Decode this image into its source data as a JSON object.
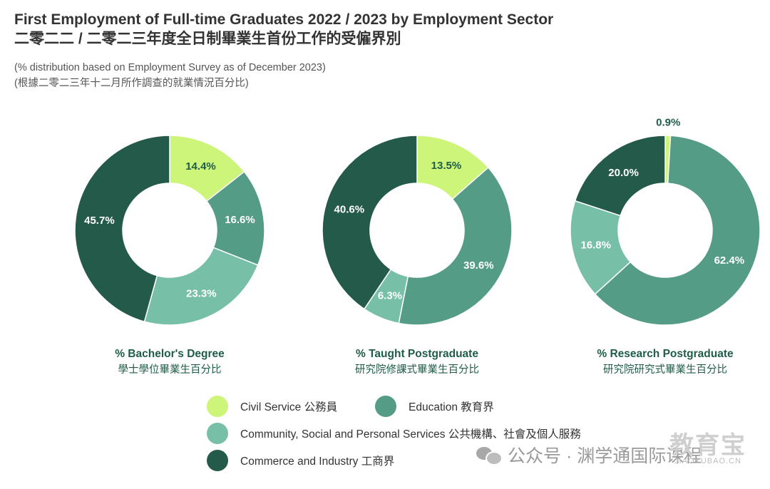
{
  "title_en": "First Employment of Full-time Graduates 2022 / 2023 by Employment Sector",
  "title_zh": "二零二二 / 二零二三年度全日制畢業生首份工作的受僱界別",
  "subtitle_en": "(% distribution based on Employment Survey as of December 2023)",
  "subtitle_zh": "(根據二零二三年十二月所作調查的就業情況百分比)",
  "colors": {
    "civil_service": "#ccf57a",
    "education": "#549c86",
    "community": "#78bfa8",
    "commerce": "#245a4a",
    "label_dark": "#1f5c49",
    "label_light": "#ffffff"
  },
  "legend": [
    {
      "key": "civil_service",
      "label": "Civil Service 公務員"
    },
    {
      "key": "education",
      "label": "Education 教育界"
    },
    {
      "key": "community",
      "label": "Community, Social and Personal Services 公共機構、社會及個人服務"
    },
    {
      "key": "commerce",
      "label": "Commerce and Industry 工商界"
    }
  ],
  "chart_data": [
    {
      "type": "pie",
      "donut": true,
      "title": "% Bachelor's Degree",
      "subtitle": "學士學位畢業生百分比",
      "slices": [
        {
          "key": "civil_service",
          "value": 14.4,
          "label": "14.4%"
        },
        {
          "key": "education",
          "value": 16.6,
          "label": "16.6%"
        },
        {
          "key": "community",
          "value": 23.3,
          "label": "23.3%"
        },
        {
          "key": "commerce",
          "value": 45.7,
          "label": "45.7%"
        }
      ]
    },
    {
      "type": "pie",
      "donut": true,
      "title": "% Taught Postgraduate",
      "subtitle": "研究院修課式畢業生百分比",
      "slices": [
        {
          "key": "civil_service",
          "value": 13.5,
          "label": "13.5%"
        },
        {
          "key": "education",
          "value": 39.6,
          "label": "39.6%"
        },
        {
          "key": "community",
          "value": 6.3,
          "label": "6.3%"
        },
        {
          "key": "commerce",
          "value": 40.6,
          "label": "40.6%"
        }
      ]
    },
    {
      "type": "pie",
      "donut": true,
      "title": "% Research Postgraduate",
      "subtitle": "研究院研究式畢業生百分比",
      "slices": [
        {
          "key": "civil_service",
          "value": 0.9,
          "label": "0.9%"
        },
        {
          "key": "education",
          "value": 62.4,
          "label": "62.4%"
        },
        {
          "key": "community",
          "value": 16.8,
          "label": "16.8%"
        },
        {
          "key": "commerce",
          "value": 20.0,
          "label": "20.0%"
        }
      ]
    }
  ],
  "watermark": {
    "text": "公众号 · 渊学通国际课程",
    "logo_big": "教育宝",
    "logo_small": "JIAOYUBAO.CN"
  }
}
